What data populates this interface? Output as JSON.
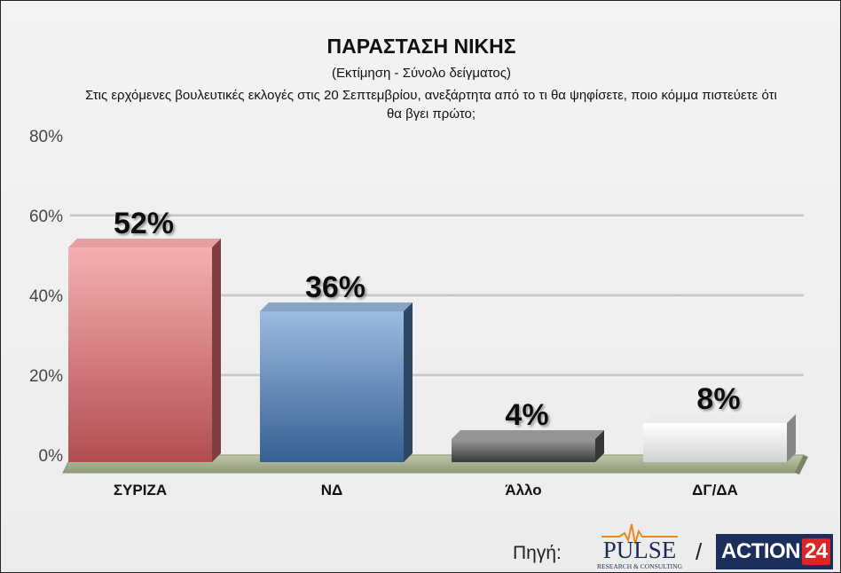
{
  "chart_data": {
    "type": "bar",
    "title": "ΠΑΡΑΣΤΑΣΗ ΝΙΚΗΣ",
    "subtitle": "(Εκτίμηση - Σύνολο δείγματος)",
    "question": "Στις ερχόμενες βουλευτικές εκλογές στις 20 Σεπτεμβρίου, ανεξάρτητα από το τι θα ψηφίσετε, ποιο κόμμα πιστεύετε ότι θα βγει πρώτο;",
    "categories": [
      "ΣΥΡΙΖΑ",
      "ΝΔ",
      "Άλλο",
      "ΔΓ/ΔΑ"
    ],
    "values": [
      52,
      36,
      4,
      8
    ],
    "value_labels": [
      "52%",
      "36%",
      "4%",
      "8%"
    ],
    "ylim": [
      0,
      80
    ],
    "y_ticks": [
      "0%",
      "20%",
      "40%",
      "60%",
      "80%"
    ],
    "grid": true,
    "bar_colors": [
      "#d9696d",
      "#4a74a6",
      "#5a5a5a",
      "#e0e0e0"
    ]
  },
  "footer": {
    "source_label": "Πηγή:",
    "pulse_name": "PULSE",
    "pulse_tagline": "RESEARCH & CONSULTING",
    "separator": "/",
    "action_text": "ACTION",
    "action_num": "24"
  }
}
